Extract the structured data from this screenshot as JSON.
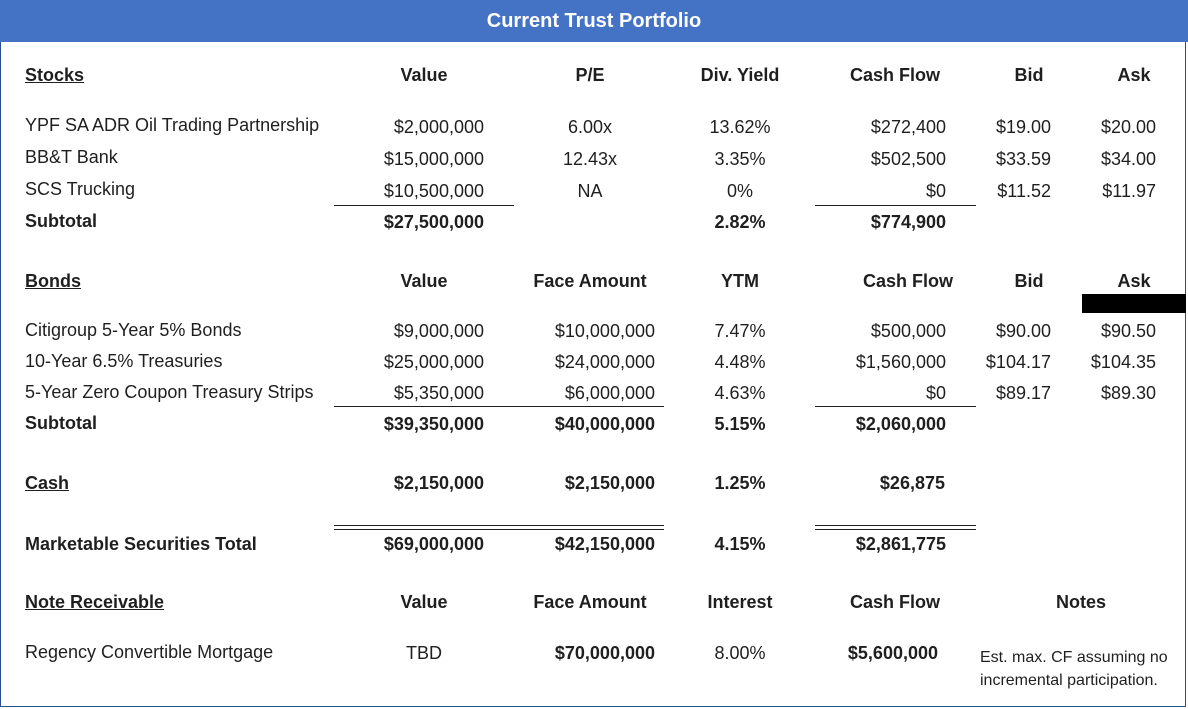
{
  "title": "Current Trust Portfolio",
  "stocks": {
    "heading": "Stocks",
    "col_value": "Value",
    "col_pe": "P/E",
    "col_div": "Div. Yield",
    "col_cf": "Cash Flow",
    "col_bid": "Bid",
    "col_ask": "Ask",
    "rows": [
      {
        "name": "YPF SA ADR Oil Trading Partnership",
        "value": "$2,000,000",
        "pe": "6.00x",
        "div": "13.62%",
        "cf": "$272,400",
        "bid": "$19.00",
        "ask": "$20.00"
      },
      {
        "name": "BB&T Bank",
        "value": "$15,000,000",
        "pe": "12.43x",
        "div": "3.35%",
        "cf": "$502,500",
        "bid": "$33.59",
        "ask": "$34.00"
      },
      {
        "name": "SCS Trucking",
        "value": "$10,500,000",
        "pe": "NA",
        "div": "0%",
        "cf": "$0",
        "bid": "$11.52",
        "ask": "$11.97"
      }
    ],
    "subtotal": {
      "label": "Subtotal",
      "value": "$27,500,000",
      "div": "2.82%",
      "cf": "$774,900"
    }
  },
  "bonds": {
    "heading": "Bonds",
    "col_value": "Value",
    "col_face": "Face Amount",
    "col_ytm": "YTM",
    "col_cf": "Cash Flow",
    "col_bid": "Bid",
    "col_ask": "Ask",
    "rows": [
      {
        "name": "Citigroup 5-Year 5% Bonds",
        "value": "$9,000,000",
        "face": "$10,000,000",
        "ytm": "7.47%",
        "cf": "$500,000",
        "bid": "$90.00",
        "ask": "$90.50"
      },
      {
        "name": "10-Year 6.5% Treasuries",
        "value": "$25,000,000",
        "face": "$24,000,000",
        "ytm": "4.48%",
        "cf": "$1,560,000",
        "bid": "$104.17",
        "ask": "$104.35"
      },
      {
        "name": "5-Year Zero Coupon Treasury Strips",
        "value": "$5,350,000",
        "face": "$6,000,000",
        "ytm": "4.63%",
        "cf": "$0",
        "bid": "$89.17",
        "ask": "$89.30"
      }
    ],
    "subtotal": {
      "label": "Subtotal",
      "value": "$39,350,000",
      "face": "$40,000,000",
      "ytm": "5.15%",
      "cf": "$2,060,000"
    }
  },
  "cash": {
    "label": "Cash",
    "value": "$2,150,000",
    "face": "$2,150,000",
    "rate": "1.25%",
    "cf": "$26,875"
  },
  "total": {
    "label": "Marketable Securities Total",
    "value": "$69,000,000",
    "face": "$42,150,000",
    "rate": "4.15%",
    "cf": "$2,861,775"
  },
  "note": {
    "heading": "Note Receivable",
    "col_value": "Value",
    "col_face": "Face Amount",
    "col_interest": "Interest",
    "col_cf": "Cash Flow",
    "col_notes": "Notes",
    "row": {
      "name": "Regency Convertible Mortgage",
      "value": "TBD",
      "face": "$70,000,000",
      "interest": "8.00%",
      "cf": "$5,600,000"
    },
    "notes_line1": "Est. max. CF assuming no",
    "notes_line2": "incremental participation."
  }
}
